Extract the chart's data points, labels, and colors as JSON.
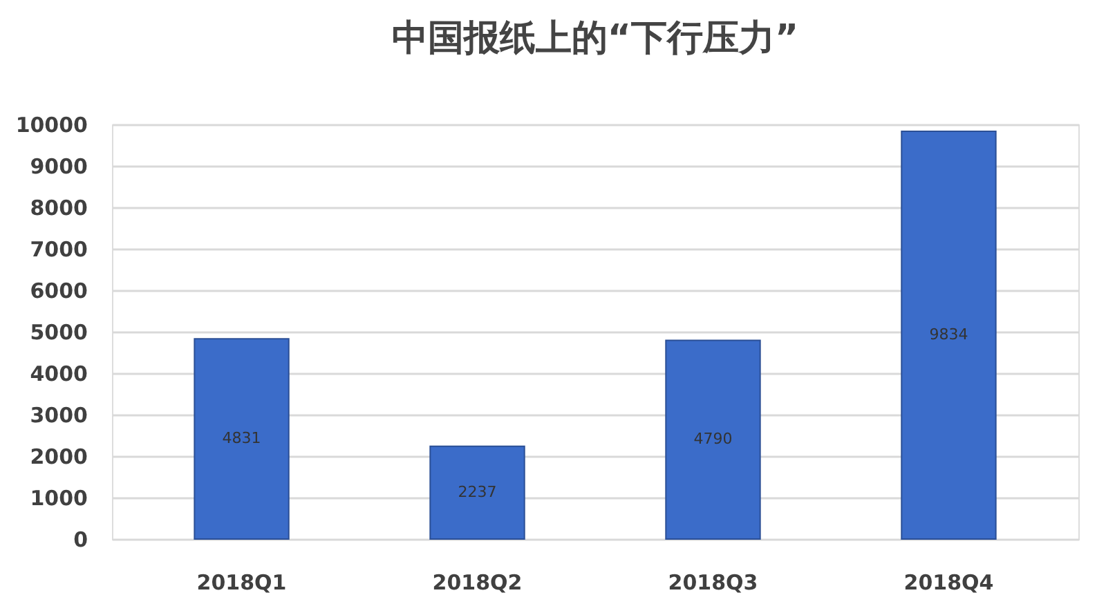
{
  "chart_data": {
    "type": "bar",
    "title": "中国报纸上的“下行压力”",
    "categories": [
      "2018Q1",
      "2018Q2",
      "2018Q3",
      "2018Q4"
    ],
    "values": [
      4831,
      2237,
      4790,
      9834
    ],
    "color": "#3b6cc9",
    "ylim": [
      0,
      10000
    ],
    "yticks": [
      0,
      1000,
      2000,
      3000,
      4000,
      5000,
      6000,
      7000,
      8000,
      9000,
      10000
    ],
    "grid": "y",
    "data_labels": true
  }
}
